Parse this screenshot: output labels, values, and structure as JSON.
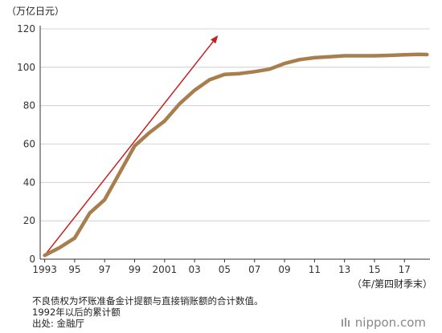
{
  "chart_data": {
    "type": "line",
    "title": "",
    "ylabel": "（万亿日元）",
    "xlabel": "（年/第四财季末）",
    "ylim": [
      0,
      120
    ],
    "yticks": [
      0,
      20,
      40,
      60,
      80,
      100,
      120
    ],
    "xlim": [
      1992.7,
      2018.7
    ],
    "xticks": [
      1993,
      1995,
      1997,
      1999,
      2001,
      2003,
      2005,
      2007,
      2009,
      2011,
      2013,
      2015,
      2017
    ],
    "xtick_labels": [
      "1993",
      "95",
      "97",
      "99",
      "2001",
      "03",
      "05",
      "07",
      "09",
      "11",
      "13",
      "15",
      "17"
    ],
    "grid": {
      "horizontal": true,
      "vertical": false
    },
    "line_color": "#a87e4e",
    "trend_color": "#c81e1e",
    "series": [
      {
        "points": [
          [
            1993,
            2
          ],
          [
            1994,
            6
          ],
          [
            1995,
            11
          ],
          [
            1996,
            24
          ],
          [
            1997,
            31
          ],
          [
            1998,
            45
          ],
          [
            1999,
            59
          ],
          [
            2000,
            66
          ],
          [
            2001,
            72
          ],
          [
            2002,
            81
          ],
          [
            2003,
            88
          ],
          [
            2004,
            93.5
          ],
          [
            2005,
            96.3
          ],
          [
            2006,
            96.7
          ],
          [
            2007,
            97.7
          ],
          [
            2008,
            99
          ],
          [
            2009,
            102
          ],
          [
            2010,
            104
          ],
          [
            2011,
            105
          ],
          [
            2012,
            105.5
          ],
          [
            2013,
            106
          ],
          [
            2014,
            106
          ],
          [
            2015,
            106
          ],
          [
            2016,
            106.2
          ],
          [
            2017,
            106.5
          ],
          [
            2018,
            106.7
          ],
          [
            2018.5,
            106.6
          ]
        ]
      }
    ],
    "trend_arrow": {
      "from": [
        1993,
        2
      ],
      "to": [
        2004.5,
        116
      ]
    }
  },
  "footnotes": {
    "line1": "不良债权为坏账准备金计提额与直接销账额的合计数值。",
    "line2": "1992年以后的累计额",
    "line3": "出处: 金融厅"
  },
  "brand": {
    "name": "nippon.com",
    "icon": "nippon-logo-icon"
  }
}
